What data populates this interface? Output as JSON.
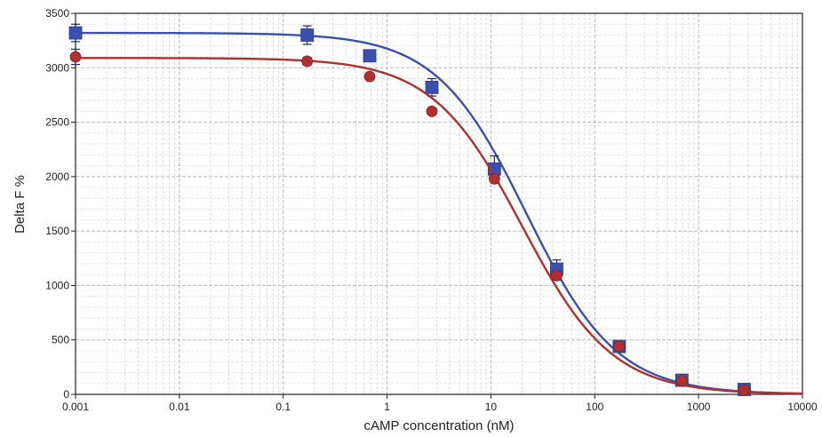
{
  "chart_data": {
    "type": "scatter",
    "title": "",
    "xlabel": "cAMP concentration (nM)",
    "ylabel": "Delta F %",
    "x_scale": "log",
    "xlim": [
      0.001,
      10000
    ],
    "ylim": [
      0,
      3500
    ],
    "grid": true,
    "legend": "none",
    "x_ticks": [
      0.001,
      0.01,
      0.1,
      1,
      10,
      100,
      1000,
      10000
    ],
    "x_tick_labels": [
      "0.001",
      "0.01",
      "0.1",
      "1",
      "10",
      "100",
      "1000",
      "10000"
    ],
    "y_ticks": [
      0,
      500,
      1000,
      1500,
      2000,
      2500,
      3000,
      3500
    ],
    "y_tick_labels": [
      "0",
      "500",
      "1000",
      "1500",
      "2000",
      "2500",
      "3000",
      "3500"
    ],
    "series": [
      {
        "color": "#3a50b0",
        "marker": "square",
        "x": [
          0.001,
          0.17,
          0.68,
          2.7,
          10.8,
          43,
          172,
          690,
          2750
        ],
        "y": [
          3320,
          3300,
          3110,
          2820,
          2070,
          1150,
          440,
          130,
          45
        ],
        "err": [
          80,
          85,
          45,
          80,
          120,
          85,
          25,
          20,
          10
        ],
        "fit": {
          "top": 3320,
          "bottom": 0,
          "ic50": 22,
          "hill": 1.0
        }
      },
      {
        "color": "#b03030",
        "marker": "circle",
        "x": [
          0.001,
          0.17,
          0.68,
          2.7,
          10.8,
          43,
          172,
          690,
          2750
        ],
        "y": [
          3100,
          3060,
          2920,
          2600,
          1980,
          1090,
          440,
          125,
          40
        ],
        "err": [
          70,
          35,
          25,
          25,
          35,
          40,
          20,
          15,
          8
        ],
        "fit": {
          "top": 3090,
          "bottom": 0,
          "ic50": 20,
          "hill": 1.0
        }
      }
    ]
  }
}
